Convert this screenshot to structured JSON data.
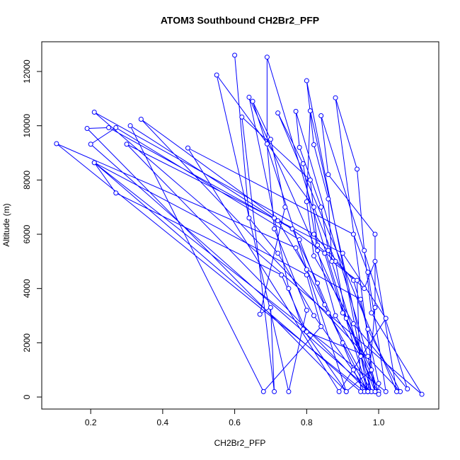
{
  "chart_data": {
    "type": "line",
    "title": "ATOM3 Southbound CH2Br2_PFP",
    "x_label": "CH2Br2_PFP",
    "y_label": "Altitude (m)",
    "series": [
      {
        "name": "CH2Br2_PFP",
        "color": "#0000ff",
        "x": [
          0.6,
          0.64,
          0.72,
          0.82,
          0.97,
          0.69,
          0.69,
          0.71,
          0.8,
          0.75,
          0.55,
          0.82,
          0.88,
          0.91,
          0.99,
          0.88,
          0.94,
          0.96,
          0.98,
          1.12,
          0.21,
          0.82,
          0.93,
          0.97,
          1.06,
          0.34,
          0.85,
          0.9,
          0.98,
          0.91,
          0.19,
          0.25,
          0.76,
          0.83,
          0.93,
          0.96,
          0.105,
          0.77,
          0.86,
          0.98,
          0.2,
          0.27,
          0.78,
          0.85,
          0.9,
          0.97,
          0.3,
          0.9,
          1.02,
          0.89,
          0.47,
          0.93,
          0.97,
          1.02,
          0.21,
          0.8,
          0.84,
          0.68,
          0.31,
          0.72,
          0.8,
          0.95,
          1.0,
          1.0,
          0.64,
          0.71,
          0.75,
          0.79,
          0.91,
          0.65,
          0.7,
          0.74,
          0.67,
          0.7,
          0.71,
          0.62,
          0.81,
          0.83,
          0.96,
          0.99,
          1.05,
          0.72,
          0.79,
          0.83,
          0.88,
          0.95,
          1.0,
          0.77,
          0.78,
          0.84,
          0.86,
          0.98,
          0.81,
          0.8,
          0.82,
          0.93,
          1.08,
          0.84,
          0.86,
          0.99,
          0.99,
          0.97,
          0.8,
          0.82,
          0.86,
          0.87,
          0.94,
          0.95,
          0.21,
          0.27,
          0.73,
          0.8,
          0.97,
          0.99
        ],
        "values": [
          12600,
          6600,
          5300,
          3000,
          200,
          12530,
          9330,
          6200,
          3200,
          200,
          11870,
          7000,
          5000,
          2900,
          200,
          11030,
          8400,
          5400,
          3100,
          100,
          10500,
          6000,
          4300,
          2500,
          200,
          10240,
          5300,
          3100,
          1000,
          200,
          9900,
          9930,
          6200,
          4200,
          1000,
          200,
          9340,
          5500,
          3100,
          200,
          9320,
          9930,
          5800,
          3400,
          2000,
          200,
          9320,
          5300,
          2900,
          200,
          9180,
          6000,
          4600,
          200,
          8640,
          4500,
          2600,
          200,
          10000,
          6500,
          4700,
          3600,
          500,
          200,
          11050,
          6600,
          4000,
          2500,
          200,
          10900,
          9500,
          7000,
          3050,
          3300,
          200,
          10320,
          8000,
          5600,
          4000,
          5000,
          200,
          10470,
          8600,
          5400,
          3000,
          1500,
          100,
          10530,
          9200,
          7000,
          5400,
          200,
          10550,
          7200,
          5200,
          2700,
          300,
          10370,
          8200,
          6000,
          3300,
          200,
          11660,
          9300,
          7300,
          5000,
          4300,
          200,
          8640,
          7520,
          4500,
          2400,
          1500,
          200
        ]
      }
    ],
    "xlim": [
      0.064,
      1.167
    ],
    "ylim": [
      -443,
      13096
    ],
    "xticks": [
      0.2,
      0.4,
      0.6,
      0.8,
      {
        "value": 1.0,
        "label": "1.0"
      }
    ],
    "yticks": [
      0,
      2000,
      4000,
      6000,
      8000,
      10000,
      12000
    ]
  }
}
